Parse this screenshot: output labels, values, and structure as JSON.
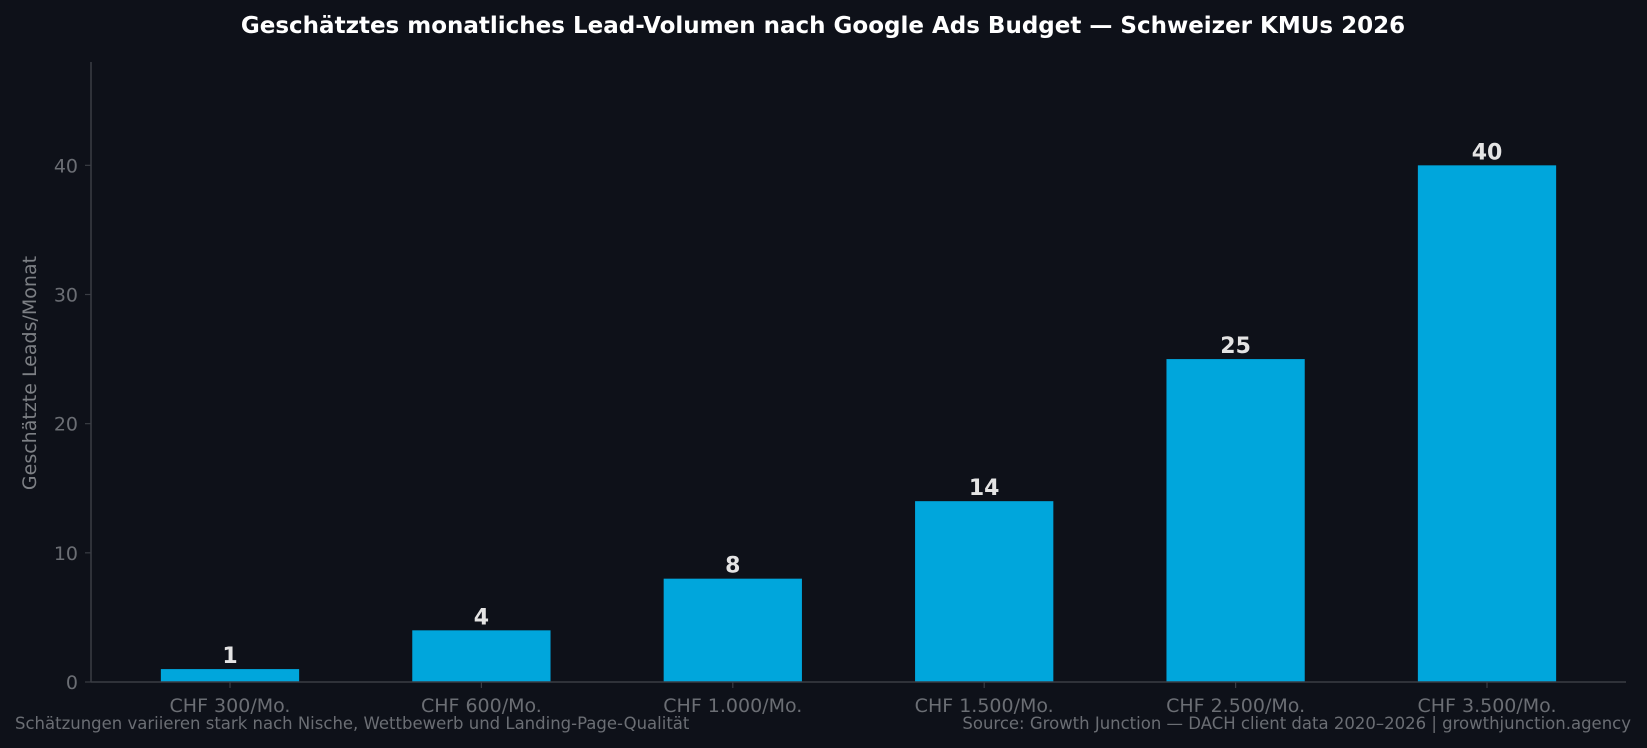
{
  "colors": {
    "background": "#0e1119",
    "bar": "#00a6dc",
    "title": "#ffffff",
    "data_label": "#e4e4e4",
    "tick_label": "#6b6e74",
    "axis": "#3a3d44"
  },
  "chart_data": {
    "type": "bar",
    "title": "Geschätztes monatliches Lead-Volumen nach Google Ads Budget — Schweizer KMUs 2026",
    "xlabel": "",
    "ylabel": "Geschätzte Leads/Monat",
    "categories": [
      "CHF 300/Mo.",
      "CHF 600/Mo.",
      "CHF 1.000/Mo.",
      "CHF 1.500/Mo.",
      "CHF 2.500/Mo.",
      "CHF 3.500/Mo."
    ],
    "values": [
      1,
      4,
      8,
      14,
      25,
      40
    ],
    "data_labels": [
      "1",
      "4",
      "8",
      "14",
      "25",
      "40"
    ],
    "ylim": [
      0,
      48
    ],
    "yticks": [
      0,
      10,
      20,
      30,
      40
    ],
    "ytick_labels": [
      "0",
      "10",
      "20",
      "30",
      "40"
    ],
    "grid": false,
    "legend": "none"
  },
  "footer": {
    "note": "Schätzungen variieren stark nach Nische, Wettbewerb und Landing-Page-Qualität",
    "source": "Source: Growth Junction — DACH client data 2020–2026 | growthjunction.agency"
  }
}
